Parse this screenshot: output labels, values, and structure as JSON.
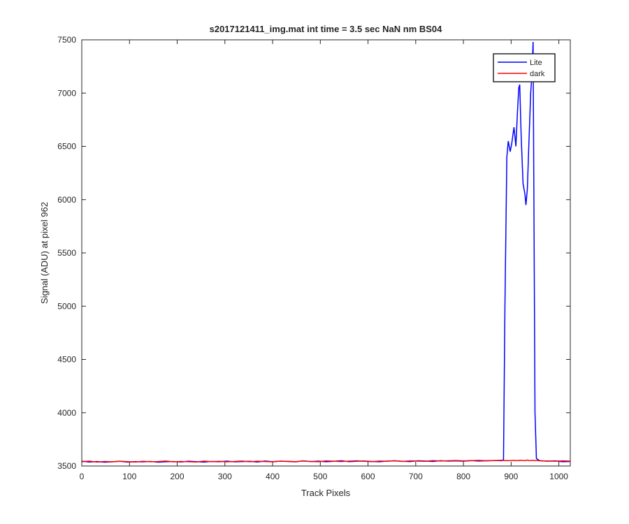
{
  "chart_data": {
    "type": "line",
    "title": "s2017121411_img.mat int time = 3.5 sec  NaN nm BS04",
    "x_label": "Track Pixels",
    "y_label": "Signal (ADU) at pixel 962",
    "xlim": [
      0,
      1024
    ],
    "ylim": [
      3500,
      7500
    ],
    "xticks": [
      0,
      100,
      200,
      300,
      400,
      500,
      600,
      700,
      800,
      900,
      1000
    ],
    "yticks": [
      3500,
      4000,
      4500,
      5000,
      5500,
      6000,
      6500,
      7000,
      7500
    ],
    "grid": false,
    "legend_position": "northeast",
    "x": [
      0,
      16,
      32,
      48,
      64,
      80,
      96,
      112,
      128,
      144,
      160,
      176,
      192,
      208,
      224,
      240,
      256,
      272,
      288,
      304,
      320,
      336,
      352,
      368,
      384,
      400,
      416,
      432,
      448,
      464,
      480,
      496,
      512,
      528,
      544,
      560,
      576,
      592,
      608,
      624,
      640,
      656,
      672,
      688,
      704,
      720,
      736,
      752,
      768,
      784,
      800,
      816,
      832,
      848,
      864,
      880,
      884,
      887,
      891,
      894,
      898,
      901,
      906,
      910,
      913,
      916,
      918,
      921,
      925,
      929,
      931,
      934,
      937,
      941,
      944,
      946,
      950,
      953,
      960,
      976,
      992,
      1008,
      1024
    ],
    "series": [
      {
        "name": "Lite",
        "color": "#0000ff",
        "values": [
          3545,
          3538,
          3542,
          3536,
          3540,
          3544,
          3537,
          3541,
          3539,
          3543,
          3536,
          3540,
          3542,
          3538,
          3545,
          3541,
          3537,
          3543,
          3540,
          3546,
          3539,
          3542,
          3544,
          3538,
          3547,
          3541,
          3545,
          3543,
          3539,
          3548,
          3542,
          3546,
          3540,
          3544,
          3549,
          3541,
          3545,
          3547,
          3543,
          3540,
          3546,
          3548,
          3544,
          3542,
          3549,
          3547,
          3543,
          3550,
          3546,
          3548,
          3545,
          3551,
          3547,
          3549,
          3552,
          3550,
          3560,
          5000,
          6400,
          6550,
          6450,
          6520,
          6680,
          6500,
          6800,
          7050,
          7080,
          6600,
          6150,
          6050,
          5950,
          6100,
          6500,
          7000,
          7200,
          7480,
          4000,
          3570,
          3550,
          3545,
          3548,
          3540,
          3543
        ]
      },
      {
        "name": "dark",
        "color": "#ff0000",
        "values": [
          3540,
          3546,
          3537,
          3543,
          3539,
          3545,
          3541,
          3538,
          3544,
          3540,
          3542,
          3547,
          3539,
          3543,
          3540,
          3538,
          3546,
          3541,
          3544,
          3539,
          3543,
          3547,
          3540,
          3545,
          3542,
          3539,
          3546,
          3544,
          3541,
          3547,
          3543,
          3540,
          3548,
          3545,
          3542,
          3546,
          3549,
          3544,
          3541,
          3547,
          3545,
          3550,
          3543,
          3548,
          3546,
          3544,
          3551,
          3547,
          3549,
          3552,
          3548,
          3550,
          3553,
          3549,
          3551,
          3554,
          3552,
          3550,
          3553,
          3549,
          3552,
          3551,
          3554,
          3550,
          3552,
          3553,
          3551,
          3555,
          3552,
          3550,
          3553,
          3556,
          3552,
          3551,
          3554,
          3553,
          3550,
          3552,
          3549,
          3547,
          3545,
          3548,
          3546
        ]
      }
    ]
  }
}
